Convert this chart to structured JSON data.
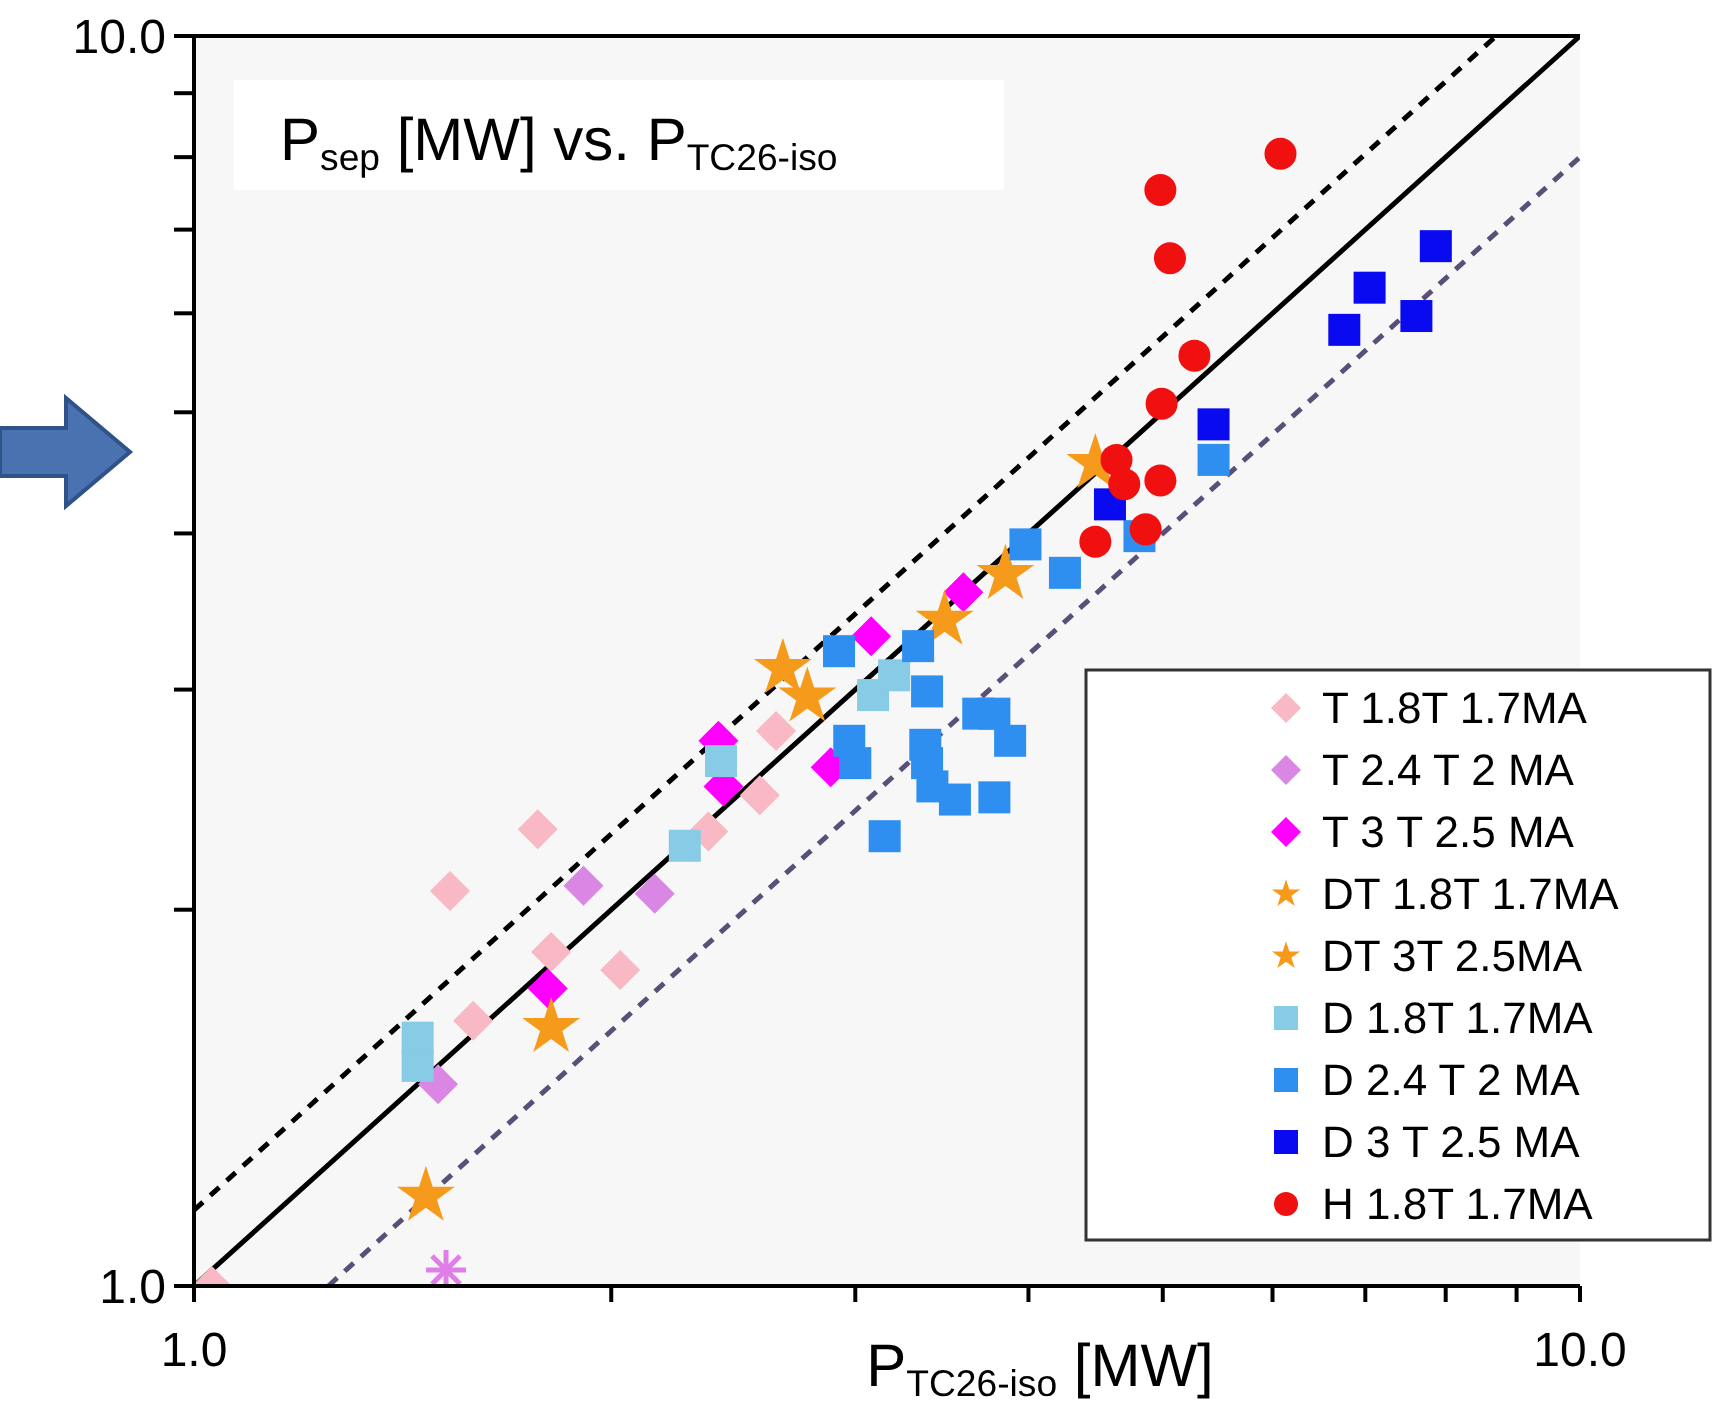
{
  "chart_data": {
    "type": "scatter",
    "title": "P$_{sep}$ [MW] vs. P$_{TC26-iso}$",
    "xlabel": "P$_{TC26-iso}$ [MW]",
    "log": "xy",
    "xlim": [
      1,
      10
    ],
    "ylim": [
      1,
      10
    ],
    "xticks": [
      {
        "value": 1,
        "label": "1.0"
      },
      {
        "value": 2,
        "label": null
      },
      {
        "value": 3,
        "label": null
      },
      {
        "value": 4,
        "label": null
      },
      {
        "value": 5,
        "label": null
      },
      {
        "value": 6,
        "label": null
      },
      {
        "value": 7,
        "label": null
      },
      {
        "value": 8,
        "label": null
      },
      {
        "value": 9,
        "label": null
      },
      {
        "value": 10,
        "label": "10.0"
      }
    ],
    "yticks": [
      {
        "value": 1,
        "label": "1.0"
      },
      {
        "value": 2,
        "label": null
      },
      {
        "value": 3,
        "label": null
      },
      {
        "value": 4,
        "label": null
      },
      {
        "value": 5,
        "label": null
      },
      {
        "value": 6,
        "label": null
      },
      {
        "value": 7,
        "label": null
      },
      {
        "value": 8,
        "label": null
      },
      {
        "value": 9,
        "label": null
      },
      {
        "value": 10,
        "label": "10.0"
      }
    ],
    "legend": "bottom right",
    "grid": false,
    "series": [
      {
        "type": "line",
        "color": "#000000",
        "line_style": "dashed",
        "x": [
          1,
          8.7
        ],
        "values": [
          1.15,
          10
        ]
      },
      {
        "type": "line",
        "color": "#000000",
        "line_style": "solid",
        "x": [
          1,
          10
        ],
        "values": [
          1,
          10
        ]
      },
      {
        "type": "line",
        "color": "#5a4f78",
        "line_style": "dashed",
        "x": [
          1.25,
          10
        ],
        "values": [
          1,
          8
        ]
      },
      {
        "name": "T 1.8T 1.7MA",
        "color": "#f8b8c4",
        "marker": "diamond",
        "x": [
          1.03,
          1.53,
          1.77,
          1.59,
          1.81,
          2.03,
          2.35,
          2.56,
          2.63
        ],
        "values": [
          1.0,
          2.07,
          2.32,
          1.63,
          1.85,
          1.79,
          2.31,
          2.47,
          2.78
        ]
      },
      {
        "name": "T 2.4 T 2 MA",
        "color": "#da86e4",
        "marker": "diamond",
        "x": [
          1.5,
          1.91,
          2.15
        ],
        "values": [
          1.45,
          2.09,
          2.06
        ]
      },
      {
        "name": "T 3 T 2.5 MA",
        "color": "#ff00ff",
        "marker": "diamond",
        "x": [
          1.8,
          2.39,
          2.41,
          2.88,
          3.08,
          3.59
        ],
        "values": [
          1.73,
          2.73,
          2.51,
          2.6,
          3.31,
          3.59
        ]
      },
      {
        "name": "DT 1.8T 1.7MA",
        "color": "#f59a1a",
        "marker": "star",
        "x": [
          1.81,
          1.47
        ],
        "values": [
          1.61,
          1.18
        ]
      },
      {
        "name": "DT 3T 2.5MA",
        "color": "#f59a1a",
        "marker": "star",
        "x": [
          2.66,
          2.77,
          3.48,
          3.85,
          4.47
        ],
        "values": [
          3.12,
          2.96,
          3.41,
          3.71,
          4.55
        ]
      },
      {
        "name": "D 1.8T 1.7MA",
        "color": "#87cbe6",
        "marker": "square",
        "x": [
          1.45,
          1.45,
          2.26,
          2.4,
          3.09,
          3.2
        ],
        "values": [
          1.58,
          1.5,
          2.25,
          2.63,
          2.97,
          3.08
        ]
      },
      {
        "name": "D 2.4 T 2 MA",
        "color": "#2e8ff0",
        "marker": "square",
        "x": [
          2.92,
          3.33,
          3.38,
          2.97,
          3.0,
          3.37,
          3.38,
          3.41,
          3.54,
          3.68,
          3.78,
          3.88,
          3.78,
          3.15,
          3.98,
          4.25,
          4.81,
          5.44
        ],
        "values": [
          3.22,
          3.25,
          2.99,
          2.73,
          2.62,
          2.71,
          2.62,
          2.51,
          2.45,
          2.87,
          2.87,
          2.73,
          2.46,
          2.29,
          3.92,
          3.72,
          3.98,
          4.58
        ]
      },
      {
        "name": "D 3 T 2.5 MA",
        "color": "#0a0af0",
        "marker": "square",
        "x": [
          4.58,
          5.44,
          6.76,
          7.05,
          7.62,
          7.87
        ],
        "values": [
          4.22,
          4.89,
          5.82,
          6.29,
          5.97,
          6.79
        ]
      },
      {
        "name": "H 1.8T 1.7MA",
        "color": "#f01010",
        "marker": "circle",
        "x": [
          4.98,
          6.08,
          5.06,
          5.27,
          4.99,
          4.98,
          4.47,
          4.86,
          4.63,
          4.69
        ],
        "values": [
          7.53,
          8.05,
          6.64,
          5.55,
          5.08,
          4.41,
          3.94,
          4.03,
          4.58,
          4.38
        ]
      },
      {
        "color": "#e07ee8",
        "marker": "cross",
        "x": [
          1.52
        ],
        "values": [
          1.03
        ]
      }
    ]
  }
}
